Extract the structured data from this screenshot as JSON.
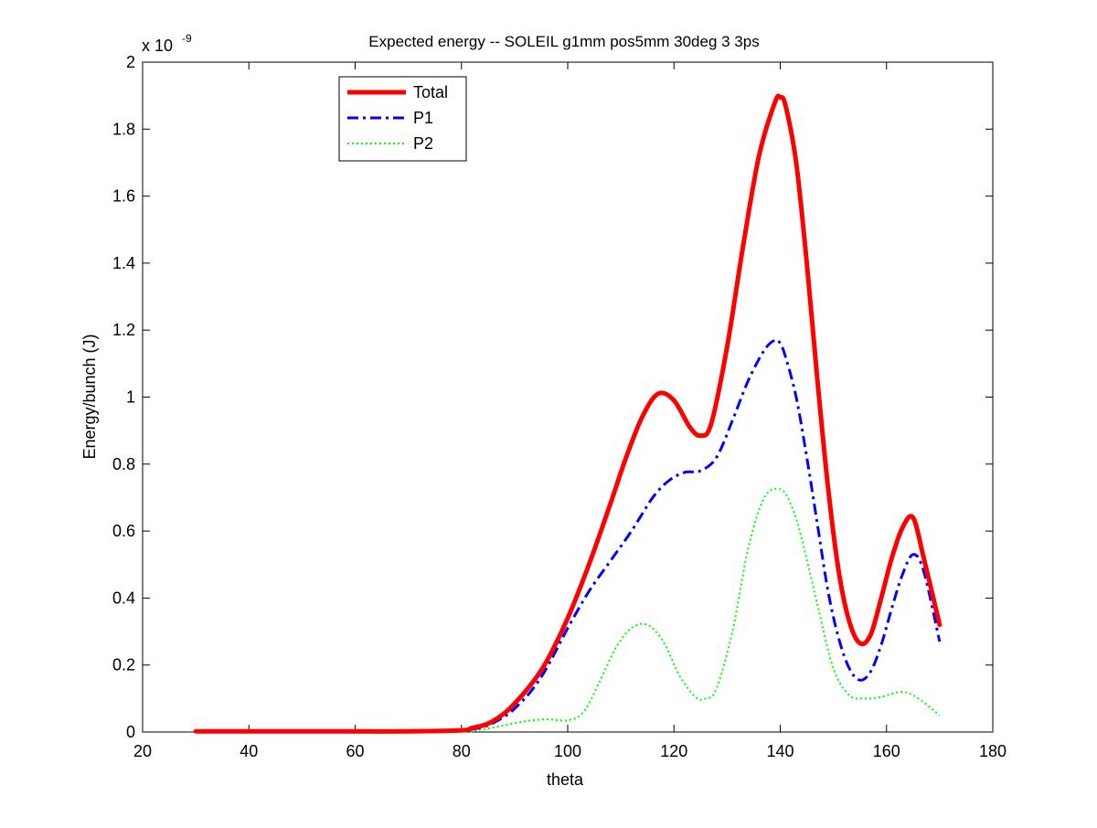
{
  "chart_data": {
    "type": "line",
    "title": "Expected energy -- SOLEIL g1mm pos5mm 30deg 3 3ps",
    "xlabel": "theta",
    "ylabel": "Energy/bunch (J)",
    "y_exponent_label": "x 10",
    "y_exponent_power": "-9",
    "xlim": [
      20,
      180
    ],
    "ylim": [
      0,
      2
    ],
    "xticks": [
      20,
      40,
      60,
      80,
      100,
      120,
      140,
      160,
      180
    ],
    "yticks": [
      0,
      0.2,
      0.4,
      0.6,
      0.8,
      1,
      1.2,
      1.4,
      1.6,
      1.8,
      2
    ],
    "xtick_labels": [
      "20",
      "40",
      "60",
      "80",
      "100",
      "120",
      "140",
      "160",
      "180"
    ],
    "ytick_labels": [
      "0",
      "0.2",
      "0.4",
      "0.6",
      "0.8",
      "1",
      "1.2",
      "1.4",
      "1.6",
      "1.8",
      "2"
    ],
    "grid": false,
    "legend_position": "top-left",
    "series": [
      {
        "name": "Total",
        "color": "#ff0000",
        "style": "solid",
        "x": [
          30,
          40,
          50,
          60,
          70,
          80,
          82,
          85,
          88,
          90,
          93,
          96,
          100,
          104,
          108,
          111,
          114,
          117,
          120,
          123,
          125,
          127,
          130,
          133,
          136,
          139,
          140,
          141,
          143,
          145,
          147,
          149,
          151,
          153,
          155,
          157,
          159,
          161,
          163,
          165,
          167,
          170
        ],
        "y": [
          0.002,
          0.002,
          0.002,
          0.002,
          0.002,
          0.005,
          0.012,
          0.025,
          0.055,
          0.085,
          0.14,
          0.21,
          0.34,
          0.5,
          0.68,
          0.82,
          0.94,
          1.01,
          0.99,
          0.91,
          0.885,
          0.92,
          1.15,
          1.45,
          1.72,
          1.88,
          1.895,
          1.87,
          1.7,
          1.4,
          1.05,
          0.73,
          0.48,
          0.33,
          0.265,
          0.29,
          0.4,
          0.52,
          0.61,
          0.64,
          0.52,
          0.32
        ]
      },
      {
        "name": "P1",
        "color": "#0000ff",
        "style": "dash-dot",
        "x": [
          30,
          40,
          50,
          60,
          70,
          80,
          82,
          85,
          88,
          90,
          93,
          96,
          100,
          104,
          108,
          112,
          116,
          119,
          122,
          125,
          128,
          131,
          134,
          137,
          139,
          140,
          141,
          143,
          145,
          147,
          149,
          151,
          153,
          155,
          157,
          159,
          161,
          163,
          165,
          167,
          170
        ],
        "y": [
          0.002,
          0.002,
          0.002,
          0.002,
          0.002,
          0.004,
          0.008,
          0.02,
          0.045,
          0.07,
          0.12,
          0.19,
          0.31,
          0.42,
          0.51,
          0.6,
          0.7,
          0.75,
          0.775,
          0.78,
          0.82,
          0.93,
          1.05,
          1.14,
          1.17,
          1.16,
          1.12,
          1.0,
          0.82,
          0.62,
          0.42,
          0.28,
          0.19,
          0.155,
          0.18,
          0.26,
          0.37,
          0.47,
          0.53,
          0.48,
          0.27
        ]
      },
      {
        "name": "P2",
        "color": "#00ff00",
        "style": "dotted",
        "x": [
          30,
          40,
          50,
          60,
          70,
          80,
          84,
          88,
          92,
          96,
          100,
          103,
          106,
          109,
          112,
          115,
          118,
          121,
          124,
          126,
          128,
          131,
          134,
          137,
          140,
          142,
          144,
          147,
          150,
          153,
          156,
          159,
          163,
          166,
          170
        ],
        "y": [
          0.0,
          0.0,
          0.0,
          0.0,
          0.0,
          0.0,
          0.008,
          0.02,
          0.032,
          0.038,
          0.035,
          0.06,
          0.15,
          0.25,
          0.31,
          0.32,
          0.27,
          0.17,
          0.105,
          0.1,
          0.13,
          0.3,
          0.55,
          0.7,
          0.725,
          0.68,
          0.58,
          0.38,
          0.19,
          0.11,
          0.1,
          0.105,
          0.12,
          0.1,
          0.05
        ]
      }
    ]
  }
}
